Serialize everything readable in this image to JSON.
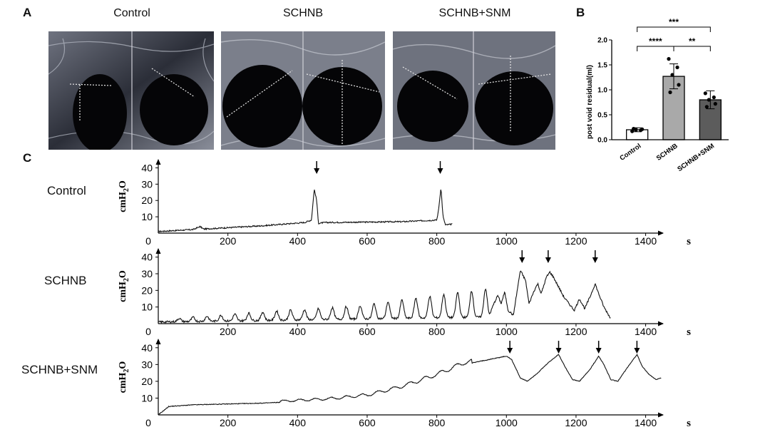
{
  "panel_a": {
    "letter": "A",
    "images": [
      {
        "title": "Control"
      },
      {
        "title": "SCHNB"
      },
      {
        "title": "SCHNB+SNM"
      }
    ]
  },
  "panel_b": {
    "letter": "B"
  },
  "panel_c": {
    "letter": "C",
    "rows": [
      {
        "label": "Control"
      },
      {
        "label": "SCHNB"
      },
      {
        "label": "SCHNB+SNM"
      }
    ]
  },
  "chart_data": [
    {
      "id": "post-void-residual",
      "type": "bar",
      "title": "",
      "ylabel": "post void residual(ml)",
      "xlabel": "",
      "ylim": [
        0,
        2.0
      ],
      "yticks": [
        "0.0",
        "0.5",
        "1.0",
        "1.5",
        "2.0"
      ],
      "ytick_values": [
        0,
        0.5,
        1.0,
        1.5,
        2.0
      ],
      "categories": [
        "Control",
        "SCHNB",
        "SCHNB+SNM"
      ],
      "values": [
        0.2,
        1.27,
        0.8
      ],
      "error": [
        0.04,
        0.25,
        0.18
      ],
      "bar_colors": [
        "#ffffff",
        "#a9a9a9",
        "#5c5c5c"
      ],
      "points": [
        [
          0.17,
          0.19,
          0.2,
          0.21,
          0.22
        ],
        [
          1.62,
          1.45,
          1.3,
          1.1,
          0.95
        ],
        [
          0.93,
          0.85,
          0.8,
          0.72,
          0.66
        ]
      ],
      "significance": [
        {
          "from": 0,
          "to": 2,
          "label": "***"
        },
        {
          "from": 0,
          "to": 1,
          "label": "****"
        },
        {
          "from": 1,
          "to": 2,
          "label": "**"
        }
      ]
    },
    {
      "id": "cmg-control",
      "type": "line",
      "ylabel_main": "cmH",
      "ylabel_sub": "2",
      "ylabel_tail": "O",
      "xlabel": "s",
      "xlim": [
        0,
        1450
      ],
      "ylim": [
        0,
        45
      ],
      "xticks": [
        "200",
        "400",
        "600",
        "800",
        "1000",
        "1200",
        "1400"
      ],
      "xtick_values": [
        200,
        400,
        600,
        800,
        1000,
        1200,
        1400
      ],
      "yticks": [
        "40",
        "30",
        "20",
        "10"
      ],
      "ytick_values": [
        40,
        30,
        20,
        10
      ],
      "origin_label": "0",
      "arrows": [
        455,
        810
      ],
      "anchors": [
        [
          0,
          1
        ],
        [
          100,
          2.2
        ],
        [
          120,
          4
        ],
        [
          130,
          2.5
        ],
        [
          300,
          4.5
        ],
        [
          420,
          6.5
        ],
        [
          440,
          8
        ],
        [
          448,
          27
        ],
        [
          455,
          20
        ],
        [
          460,
          6
        ],
        [
          480,
          6.5
        ],
        [
          700,
          7
        ],
        [
          800,
          8
        ],
        [
          805,
          14
        ],
        [
          812,
          28
        ],
        [
          818,
          10
        ],
        [
          825,
          5
        ],
        [
          845,
          5.5
        ]
      ],
      "noise": 0.8,
      "end": 845
    },
    {
      "id": "cmg-schnb",
      "type": "line",
      "ylabel_main": "cmH",
      "ylabel_sub": "2",
      "ylabel_tail": "O",
      "xlabel": "s",
      "xlim": [
        0,
        1450
      ],
      "ylim": [
        0,
        45
      ],
      "xticks": [
        "200",
        "400",
        "600",
        "800",
        "1000",
        "1200",
        "1400"
      ],
      "xtick_values": [
        200,
        400,
        600,
        800,
        1000,
        1200,
        1400
      ],
      "yticks": [
        "40",
        "30",
        "20",
        "10"
      ],
      "ytick_values": [
        40,
        30,
        20,
        10
      ],
      "origin_label": "0",
      "arrows": [
        1045,
        1120,
        1255
      ],
      "peaks": [
        [
          60,
          2
        ],
        [
          100,
          2.5
        ],
        [
          140,
          3
        ],
        [
          180,
          3.5
        ],
        [
          220,
          4
        ],
        [
          260,
          4.5
        ],
        [
          300,
          5
        ],
        [
          340,
          5.5
        ],
        [
          380,
          6
        ],
        [
          420,
          6
        ],
        [
          460,
          6.5
        ],
        [
          500,
          7
        ],
        [
          540,
          7.5
        ],
        [
          580,
          8
        ],
        [
          620,
          9
        ],
        [
          660,
          10
        ],
        [
          700,
          11
        ],
        [
          740,
          12
        ],
        [
          780,
          13
        ],
        [
          820,
          14
        ],
        [
          860,
          15
        ],
        [
          900,
          16
        ],
        [
          940,
          17
        ]
      ],
      "anchors": [
        [
          0,
          1
        ],
        [
          950,
          4
        ],
        [
          960,
          10
        ],
        [
          975,
          17
        ],
        [
          985,
          12
        ],
        [
          995,
          19
        ],
        [
          1005,
          8
        ],
        [
          1020,
          5
        ],
        [
          1040,
          32
        ],
        [
          1055,
          26
        ],
        [
          1065,
          12
        ],
        [
          1080,
          20
        ],
        [
          1090,
          24
        ],
        [
          1100,
          18
        ],
        [
          1115,
          28
        ],
        [
          1125,
          31
        ],
        [
          1135,
          28
        ],
        [
          1150,
          22
        ],
        [
          1165,
          16
        ],
        [
          1180,
          12
        ],
        [
          1195,
          8
        ],
        [
          1210,
          15
        ],
        [
          1225,
          9
        ],
        [
          1240,
          16
        ],
        [
          1255,
          24
        ],
        [
          1265,
          18
        ],
        [
          1280,
          10
        ],
        [
          1300,
          3
        ]
      ],
      "noise": 1.2,
      "end": 1300
    },
    {
      "id": "cmg-schnb-snm",
      "type": "line",
      "ylabel_main": "cmH",
      "ylabel_sub": "2",
      "ylabel_tail": "O",
      "xlabel": "s",
      "xlim": [
        0,
        1450
      ],
      "ylim": [
        0,
        45
      ],
      "xticks": [
        "200",
        "400",
        "600",
        "800",
        "1000",
        "1200",
        "1400"
      ],
      "xtick_values": [
        200,
        400,
        600,
        800,
        1000,
        1200,
        1400
      ],
      "yticks": [
        "40",
        "30",
        "20",
        "10"
      ],
      "ytick_values": [
        40,
        30,
        20,
        10
      ],
      "origin_label": "0",
      "arrows": [
        1010,
        1150,
        1265,
        1375
      ],
      "anchors": [
        [
          0,
          0
        ],
        [
          30,
          5
        ],
        [
          100,
          6
        ],
        [
          300,
          7
        ],
        [
          500,
          9
        ],
        [
          600,
          11
        ],
        [
          700,
          16
        ],
        [
          800,
          23
        ],
        [
          880,
          30
        ],
        [
          950,
          33
        ],
        [
          1000,
          35
        ],
        [
          1015,
          33
        ],
        [
          1040,
          22
        ],
        [
          1060,
          20
        ],
        [
          1090,
          25
        ],
        [
          1120,
          31
        ],
        [
          1150,
          36
        ],
        [
          1165,
          30
        ],
        [
          1190,
          21
        ],
        [
          1210,
          20
        ],
        [
          1240,
          27
        ],
        [
          1265,
          35
        ],
        [
          1280,
          30
        ],
        [
          1300,
          21
        ],
        [
          1320,
          20
        ],
        [
          1350,
          29
        ],
        [
          1375,
          36
        ],
        [
          1390,
          29
        ],
        [
          1410,
          24
        ],
        [
          1430,
          21
        ],
        [
          1445,
          22
        ]
      ],
      "wiggle": [
        [
          350,
          900,
          45,
          1.2
        ]
      ],
      "noise": 0.4,
      "end": 1445
    }
  ]
}
